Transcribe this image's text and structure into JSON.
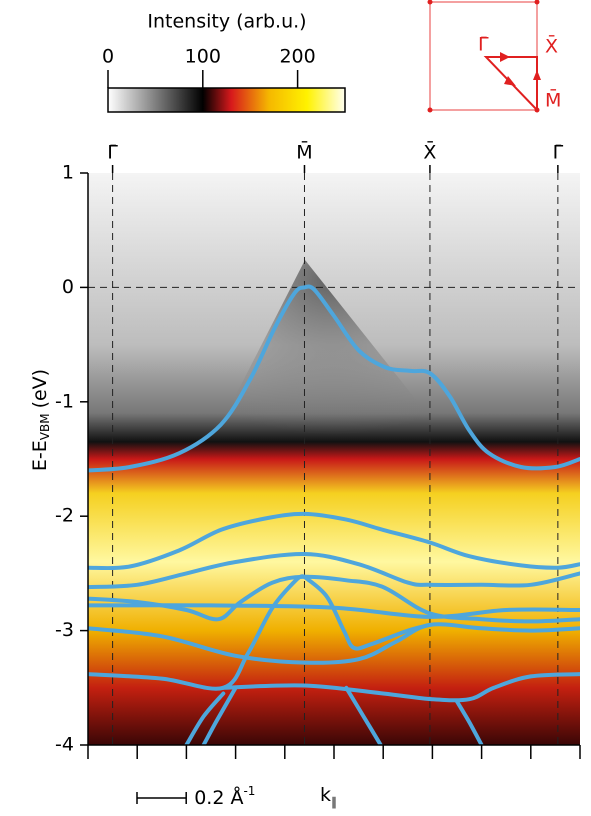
{
  "chart_data": {
    "type": "line",
    "ylabel": {
      "main": "E-E",
      "sub": "VBM",
      "unit": "(eV)"
    },
    "xlabel": {
      "main": "k",
      "sub": "∥"
    },
    "xlim": [
      0,
      2.0
    ],
    "xticks": [
      0,
      0.2,
      0.4,
      0.6,
      0.8,
      1.0,
      1.2,
      1.4,
      1.6,
      1.8,
      2.0
    ],
    "ylim": [
      -4,
      1
    ],
    "yticks": [
      1,
      0,
      -1,
      -2,
      -3,
      -4
    ],
    "ref_line": 0,
    "sym_points": [
      {
        "label": "Γ̄",
        "x": 0.1
      },
      {
        "label": "M̄",
        "x": 0.88
      },
      {
        "label": "X̄",
        "x": 1.39
      },
      {
        "label": "Γ̄",
        "x": 1.91
      }
    ],
    "scale_bar": {
      "length": 0.2,
      "label": "0.2 Å",
      "sup": "-1"
    },
    "color": "#4ea6dc",
    "series": [
      {
        "x": [
          0,
          0.17,
          0.37,
          0.54,
          0.66,
          0.76,
          0.84,
          0.88,
          0.92,
          1.0,
          1.1,
          1.21,
          1.31,
          1.39,
          1.47,
          1.55,
          1.63,
          1.76,
          1.9,
          2.0
        ],
        "values": [
          -1.6,
          -1.57,
          -1.45,
          -1.2,
          -0.8,
          -0.35,
          -0.05,
          0.0,
          -0.02,
          -0.25,
          -0.55,
          -0.7,
          -0.73,
          -0.75,
          -0.95,
          -1.25,
          -1.45,
          -1.57,
          -1.57,
          -1.5
        ]
      },
      {
        "x": [
          0,
          0.17,
          0.37,
          0.54,
          0.72,
          0.88,
          1.05,
          1.2,
          1.39,
          1.55,
          1.76,
          1.91,
          2.0
        ],
        "values": [
          -2.45,
          -2.44,
          -2.3,
          -2.12,
          -2.02,
          -1.98,
          -2.03,
          -2.12,
          -2.23,
          -2.35,
          -2.43,
          -2.45,
          -2.42
        ]
      },
      {
        "x": [
          0,
          0.2,
          0.4,
          0.6,
          0.88,
          1.1,
          1.3,
          1.39,
          1.6,
          1.8,
          2.0
        ],
        "values": [
          -2.62,
          -2.6,
          -2.5,
          -2.4,
          -2.33,
          -2.42,
          -2.58,
          -2.6,
          -2.6,
          -2.6,
          -2.5
        ]
      },
      {
        "x": [
          0,
          0.2,
          0.4,
          0.53,
          0.62,
          0.75,
          0.88,
          1.05,
          1.2,
          1.39,
          1.6,
          1.8,
          2.0
        ],
        "values": [
          -2.72,
          -2.75,
          -2.82,
          -2.9,
          -2.75,
          -2.58,
          -2.53,
          -2.56,
          -2.62,
          -2.85,
          -2.9,
          -2.92,
          -2.9
        ]
      },
      {
        "x": [
          0,
          0.5,
          1.0,
          1.39,
          1.7,
          2.0
        ],
        "values": [
          -2.78,
          -2.78,
          -2.8,
          -2.88,
          -2.82,
          -2.82
        ]
      },
      {
        "x": [
          0,
          0.3,
          0.6,
          0.88,
          1.1,
          1.25,
          1.39,
          1.6,
          1.8,
          2.0
        ],
        "values": [
          -2.98,
          -3.05,
          -3.22,
          -3.28,
          -3.25,
          -3.1,
          -2.95,
          -2.98,
          -3.0,
          -2.98
        ]
      },
      {
        "x": [
          0.88,
          0.97,
          1.04,
          1.08,
          1.15,
          1.3,
          1.39
        ],
        "values": [
          -2.53,
          -2.7,
          -3.0,
          -3.15,
          -3.12,
          -3.0,
          -2.95
        ]
      },
      {
        "x": [
          0,
          0.3,
          0.55,
          0.65,
          0.75,
          0.85,
          0.88
        ],
        "values": [
          -3.38,
          -3.42,
          -3.5,
          -3.2,
          -2.8,
          -2.55,
          -2.53
        ]
      },
      {
        "x": [
          0.55,
          0.88,
          1.2,
          1.4,
          1.55,
          1.65,
          1.8,
          2.0
        ],
        "values": [
          -3.5,
          -3.48,
          -3.55,
          -3.6,
          -3.6,
          -3.5,
          -3.4,
          -3.38
        ]
      },
      {
        "x": [
          0.4,
          0.47,
          0.55
        ],
        "values": [
          -4.0,
          -3.75,
          -3.55
        ]
      },
      {
        "x": [
          0.47,
          0.52,
          0.6
        ],
        "values": [
          -4.0,
          -3.8,
          -3.5
        ]
      },
      {
        "x": [
          1.05,
          1.12,
          1.19
        ],
        "values": [
          -3.5,
          -3.75,
          -4.0
        ]
      },
      {
        "x": [
          1.5,
          1.55,
          1.6
        ],
        "values": [
          -3.62,
          -3.8,
          -4.0
        ]
      }
    ]
  },
  "colorbar": {
    "label": "Intensity (arb.u.)",
    "lim": [
      0,
      250
    ],
    "ticks": [
      0,
      100,
      200
    ],
    "stops": [
      {
        "value": 0,
        "color": "#ffffff"
      },
      {
        "value": 100,
        "color": "#000000"
      },
      {
        "value": 130,
        "color": "#d7191c"
      },
      {
        "value": 170,
        "color": "#f5b800"
      },
      {
        "value": 210,
        "color": "#fff200"
      },
      {
        "value": 250,
        "color": "#fffff0"
      }
    ]
  },
  "inset": {
    "labels": [
      "Γ̄",
      "X̄",
      "M̄"
    ]
  }
}
